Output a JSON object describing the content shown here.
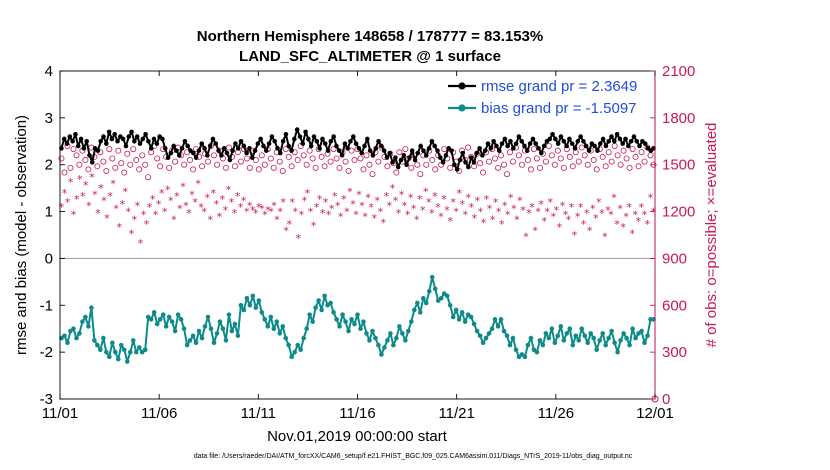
{
  "chart_data": {
    "type": "line",
    "title_line1": "Northern Hemisphere 148658 / 178777 = 83.153%",
    "title_line2": "LAND_SFC_ALTIMETER @ 1 surface",
    "xlabel": "Nov.01,2019 00:00:00 start",
    "ylabel_left": "rmse and bias (model - observation)",
    "ylabel_right": "# of obs: o=possible; ×=evaluated",
    "x_ticks": [
      "11/01",
      "11/06",
      "11/11",
      "11/16",
      "11/21",
      "11/26",
      "12/01"
    ],
    "y_left_ticks": [
      -3,
      -2,
      -1,
      0,
      1,
      2,
      3,
      4
    ],
    "y_right_ticks": [
      0,
      300,
      600,
      900,
      1200,
      1500,
      1800,
      2100
    ],
    "ylim_left": [
      -3,
      4
    ],
    "ylim_right": [
      0,
      2100
    ],
    "xlim_days": [
      0,
      30
    ],
    "legend_position": "top-right",
    "colors": {
      "rmse": "#000000",
      "bias": "#0e8a8a",
      "obs": "#c8185a",
      "zero_line": "#b0a0a0",
      "legend_text": "#1f4fd8"
    },
    "series": [
      {
        "name": "rmse grand pr = 2.3649",
        "key": "rmse",
        "values": [
          2.35,
          2.55,
          2.45,
          2.6,
          2.5,
          2.65,
          2.4,
          2.55,
          2.35,
          2.5,
          2.2,
          2.05,
          2.35,
          2.3,
          2.5,
          2.6,
          2.45,
          2.7,
          2.55,
          2.65,
          2.5,
          2.6,
          2.55,
          2.4,
          2.6,
          2.7,
          2.5,
          2.6,
          2.45,
          2.55,
          2.65,
          2.5,
          2.35,
          2.55,
          2.45,
          2.6,
          2.55,
          2.35,
          2.15,
          2.25,
          2.4,
          2.3,
          2.2,
          2.35,
          2.5,
          2.4,
          2.3,
          2.25,
          2.15,
          2.3,
          2.45,
          2.35,
          2.2,
          2.4,
          2.55,
          2.45,
          2.3,
          2.2,
          2.35,
          2.25,
          2.1,
          2.3,
          2.45,
          2.35,
          2.5,
          2.4,
          2.25,
          2.35,
          2.15,
          2.3,
          2.45,
          2.55,
          2.4,
          2.3,
          2.45,
          2.6,
          2.5,
          2.35,
          2.25,
          2.5,
          2.65,
          2.4,
          2.3,
          2.55,
          2.75,
          2.6,
          2.45,
          2.7,
          2.55,
          2.4,
          2.6,
          2.5,
          2.35,
          2.55,
          2.45,
          2.3,
          2.5,
          2.6,
          2.4,
          2.3,
          2.2,
          2.45,
          2.35,
          2.5,
          2.6,
          2.45,
          2.35,
          2.25,
          2.4,
          2.55,
          2.3,
          2.2,
          2.35,
          2.5,
          2.4,
          2.3,
          2.15,
          2.25,
          2.05,
          2.15,
          1.95,
          2.1,
          2.2,
          2.0,
          2.15,
          2.3,
          2.1,
          2.25,
          2.4,
          2.3,
          2.2,
          2.35,
          2.5,
          2.4,
          2.3,
          2.15,
          2.05,
          2.2,
          2.35,
          2.3,
          2.0,
          1.9,
          2.1,
          2.25,
          2.05,
          1.95,
          2.15,
          2.05,
          2.25,
          2.35,
          2.2,
          2.3,
          2.45,
          2.35,
          2.5,
          2.4,
          2.3,
          2.45,
          2.55,
          2.4,
          2.5,
          2.35,
          2.45,
          2.6,
          2.5,
          2.4,
          2.3,
          2.45,
          2.55,
          2.45,
          2.35,
          2.25,
          2.4,
          2.5,
          2.55,
          2.65,
          2.55,
          2.45,
          2.6,
          2.5,
          2.4,
          2.55,
          2.45,
          2.35,
          2.5,
          2.6,
          2.5,
          2.4,
          2.3,
          2.45,
          2.4,
          2.3,
          2.45,
          2.55,
          2.4,
          2.5,
          2.6,
          2.5,
          2.65,
          2.55,
          2.45,
          2.55,
          2.4,
          2.5,
          2.6,
          2.5,
          2.4,
          2.5,
          2.45,
          2.35,
          2.3,
          2.35
        ]
      },
      {
        "name": "bias grand pr = -1.5097",
        "key": "bias",
        "values": [
          -1.7,
          -1.65,
          -1.8,
          -1.55,
          -1.5,
          -1.7,
          -1.6,
          -1.35,
          -1.25,
          -1.45,
          -1.05,
          -1.75,
          -1.85,
          -1.95,
          -1.7,
          -2.0,
          -2.1,
          -1.8,
          -2.0,
          -2.15,
          -1.85,
          -1.95,
          -2.2,
          -2.0,
          -1.75,
          -2.0,
          -1.9,
          -2.0,
          -1.95,
          -1.25,
          -1.3,
          -1.15,
          -1.4,
          -1.3,
          -1.2,
          -1.45,
          -1.25,
          -1.35,
          -1.55,
          -1.2,
          -1.3,
          -1.5,
          -1.85,
          -1.75,
          -1.65,
          -1.8,
          -1.55,
          -1.7,
          -1.45,
          -1.25,
          -1.5,
          -1.8,
          -1.6,
          -1.35,
          -1.5,
          -1.75,
          -1.2,
          -1.55,
          -1.4,
          -1.65,
          -1.0,
          -1.1,
          -0.85,
          -1.0,
          -0.8,
          -1.05,
          -0.9,
          -1.15,
          -1.3,
          -1.45,
          -1.25,
          -1.5,
          -1.35,
          -1.6,
          -1.45,
          -1.7,
          -1.85,
          -2.1,
          -2.0,
          -1.85,
          -1.95,
          -1.7,
          -1.5,
          -1.2,
          -1.35,
          -1.05,
          -0.9,
          -1.1,
          -0.8,
          -1.0,
          -0.95,
          -1.15,
          -1.3,
          -1.45,
          -1.2,
          -1.35,
          -1.55,
          -1.3,
          -1.4,
          -1.2,
          -1.5,
          -1.35,
          -1.6,
          -1.75,
          -1.55,
          -1.7,
          -1.85,
          -2.05,
          -1.9,
          -1.75,
          -1.6,
          -1.85,
          -1.7,
          -1.45,
          -1.6,
          -1.75,
          -1.55,
          -1.35,
          -1.1,
          -0.95,
          -1.15,
          -0.85,
          -0.95,
          -0.7,
          -0.4,
          -0.65,
          -0.9,
          -0.85,
          -0.75,
          -0.8,
          -1.0,
          -1.25,
          -1.1,
          -1.3,
          -1.15,
          -1.35,
          -1.2,
          -1.25,
          -1.4,
          -1.55,
          -1.65,
          -1.8,
          -1.7,
          -1.6,
          -1.5,
          -1.3,
          -1.45,
          -1.3,
          -1.55,
          -1.65,
          -1.85,
          -1.7,
          -1.95,
          -2.1,
          -2.05,
          -2.1,
          -1.85,
          -1.7,
          -1.95,
          -2.0,
          -1.75,
          -1.85,
          -1.6,
          -1.7,
          -1.5,
          -1.8,
          -1.65,
          -1.45,
          -1.75,
          -1.6,
          -1.5,
          -1.85,
          -1.65,
          -1.75,
          -1.5,
          -1.65,
          -1.8,
          -1.6,
          -1.7,
          -1.95,
          -1.75,
          -1.6,
          -1.85,
          -1.7,
          -1.55,
          -1.8,
          -2.0,
          -1.75,
          -1.6,
          -1.7,
          -1.85,
          -1.5,
          -1.7,
          -1.6,
          -1.55,
          -1.8,
          -1.65,
          -1.3,
          -1.3
        ]
      },
      {
        "name": "obs possible",
        "key": "possible",
        "marker": "o",
        "values": [
          1540,
          1450,
          1620,
          1480,
          1600,
          1560,
          1500,
          1590,
          1530,
          1470,
          1610,
          1550,
          1490,
          1580,
          1520,
          1460,
          1600,
          1540,
          1480,
          1590,
          1510,
          1450,
          1570,
          1500,
          1600,
          1530,
          1470,
          1560,
          1500,
          1420,
          1580,
          1620,
          1540,
          1490,
          1600,
          1550,
          1480,
          1590,
          1520,
          1610,
          1560,
          1500,
          1580,
          1530,
          1470,
          1600,
          1550,
          1490,
          1570,
          1520,
          1620,
          1560,
          1500,
          1590,
          1540,
          1480,
          1610,
          1550,
          1490,
          1580,
          1520,
          1600,
          1540,
          1480,
          1590,
          1530,
          1470,
          1560,
          1500,
          1600,
          1540,
          1480,
          1580,
          1520,
          1460,
          1600,
          1550,
          1490,
          1580,
          1530,
          1620,
          1560,
          1500,
          1590,
          1540,
          1480,
          1600,
          1550,
          1490,
          1570,
          1520,
          1600,
          1540,
          1480,
          1580,
          1520,
          1460,
          1590,
          1530,
          1600,
          1540,
          1470,
          1560,
          1500,
          1440,
          1580,
          1520,
          1610,
          1550,
          1490,
          1570,
          1510,
          1450,
          1580,
          1520,
          1600,
          1540,
          1480,
          1560,
          1500,
          1440,
          1560,
          1500,
          1590,
          1530,
          1470,
          1560,
          1500,
          1600,
          1540,
          1480,
          1580,
          1520,
          1460,
          1590,
          1530,
          1610,
          1550,
          1490,
          1570,
          1510,
          1450,
          1580,
          1520,
          1600,
          1540,
          1480,
          1560,
          1500,
          1440,
          1580,
          1520,
          1610,
          1560,
          1500,
          1590,
          1530,
          1470,
          1600,
          1540,
          1480,
          1570,
          1520,
          1620,
          1560,
          1500,
          1590,
          1540,
          1480,
          1600,
          1550,
          1490,
          1580,
          1520,
          1610,
          1560,
          1500,
          1590,
          1530,
          1470,
          1600,
          1550,
          1490,
          1580,
          1520,
          1620,
          1560,
          1500,
          1590,
          1540,
          1480,
          1600,
          1550,
          1490,
          1580,
          1520,
          1610,
          1560,
          1500
        ]
      },
      {
        "name": "obs evaluated",
        "key": "evaluated",
        "marker": "*",
        "values": [
          1230,
          1320,
          1260,
          1390,
          1180,
          1280,
          1410,
          1300,
          1370,
          1240,
          1420,
          1310,
          1190,
          1350,
          1270,
          1160,
          1300,
          1380,
          1220,
          1100,
          1250,
          1330,
          1200,
          1060,
          1150,
          1240,
          1000,
          1180,
          1120,
          1230,
          1280,
          1180,
          1250,
          1320,
          1200,
          1340,
          1270,
          1150,
          1300,
          1220,
          1360,
          1240,
          1190,
          1310,
          1260,
          1380,
          1230,
          1200,
          1290,
          1150,
          1320,
          1250,
          1170,
          1280,
          1210,
          1340,
          1260,
          1190,
          1300,
          1230,
          1270,
          1200,
          1240,
          1210,
          1190,
          1230,
          1220,
          1180,
          1210,
          1200,
          1240,
          1150,
          1200,
          1260,
          1080,
          1120,
          1260,
          1200,
          1030,
          1180,
          1270,
          1320,
          1200,
          1110,
          1230,
          1280,
          1190,
          1260,
          1180,
          1220,
          1300,
          1240,
          1170,
          1280,
          1200,
          1330,
          1250,
          1180,
          1310,
          1240,
          1170,
          1290,
          1230,
          1160,
          1270,
          1200,
          1130,
          1300,
          1240,
          1350,
          1270,
          1190,
          1310,
          1240,
          1180,
          1290,
          1220,
          1150,
          1280,
          1210,
          1330,
          1260,
          1190,
          1300,
          1230,
          1170,
          1280,
          1210,
          1140,
          1260,
          1200,
          1320,
          1250,
          1180,
          1290,
          1230,
          1160,
          1270,
          1200,
          1130,
          1280,
          1220,
          1150,
          1260,
          1200,
          1120,
          1240,
          1180,
          1290,
          1220,
          1150,
          1270,
          1210,
          1040,
          1190,
          1230,
          1080,
          1200,
          1250,
          1140,
          1200,
          1260,
          1170,
          1210,
          1100,
          1240,
          1180,
          1150,
          1230,
          1050,
          1170,
          1230,
          1120,
          1190,
          1080,
          1220,
          1160,
          1260,
          1190,
          1040,
          1210,
          1180,
          1290,
          1120,
          1220,
          1100,
          1170,
          1230,
          1060,
          1180,
          1140,
          1230,
          1180,
          1120,
          1290,
          1200
        ]
      }
    ],
    "footer": "data file: /Users/raeder/DAI/ATM_forcXX/CAM6_setup/f.e21.FHIST_BGC.f09_025.CAM6assim.011/Diags_NTrS_2019-11/obs_diag_output.nc"
  }
}
